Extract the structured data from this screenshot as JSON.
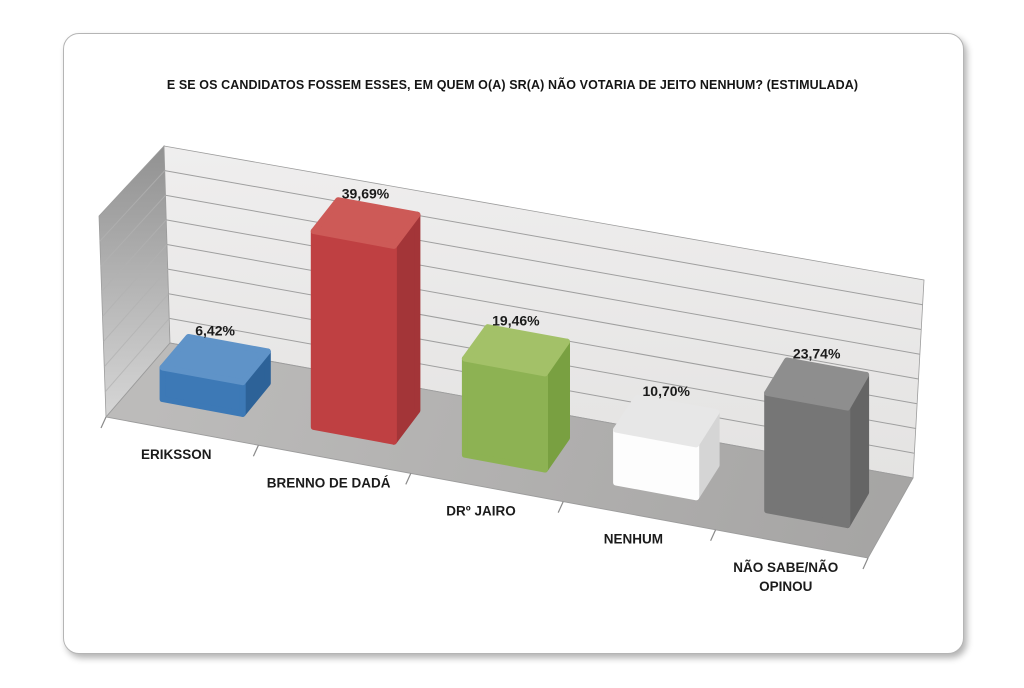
{
  "chart_data": {
    "type": "bar",
    "projection": "3d-perspective",
    "title": "E SE OS CANDIDATOS FOSSEM ESSES, EM QUEM O(A) SR(A) NÃO VOTARIA DE JEITO NENHUM? (ESTIMULADA)",
    "categories": [
      "ERIKSSON",
      "BRENNO DE DADÁ",
      "DRº JAIRO",
      "NENHUM",
      "NÃO SABE/NÃO OPINOU"
    ],
    "category_lines": [
      [
        "ERIKSSON"
      ],
      [
        "BRENNO DE DADÁ"
      ],
      [
        "DRº JAIRO"
      ],
      [
        "NENHUM"
      ],
      [
        "NÃO SABE/NÃO",
        "OPINOU"
      ]
    ],
    "values": [
      6.42,
      39.69,
      19.46,
      10.7,
      23.74
    ],
    "value_labels": [
      "6,42%",
      "39,69%",
      "19,46%",
      "10,70%",
      "23,74%"
    ],
    "ylim": [
      0,
      40
    ],
    "gridline_step_pct": 5,
    "grid": "horizontal-only",
    "legend": "none",
    "axis_tick_marks": 6,
    "bar_colors": [
      {
        "name": "blue",
        "front": "#3d79b6",
        "top": "#5f93c8",
        "side": "#2d6298"
      },
      {
        "name": "red",
        "front": "#bf4042",
        "top": "#cd5a57",
        "side": "#a33538"
      },
      {
        "name": "green",
        "front": "#8db253",
        "top": "#a3c168",
        "side": "#79a041"
      },
      {
        "name": "white",
        "front": "#fdfdfd",
        "top": "#e7e7e7",
        "side": "#d5d5d5"
      },
      {
        "name": "gray",
        "front": "#767676",
        "top": "#8e8e8e",
        "side": "#656565"
      }
    ],
    "label_color": "#1b1b1b",
    "wall_color": "#e9e8e8",
    "floor_color": "#b0afae",
    "gridline_color": "#9f9f9f"
  }
}
